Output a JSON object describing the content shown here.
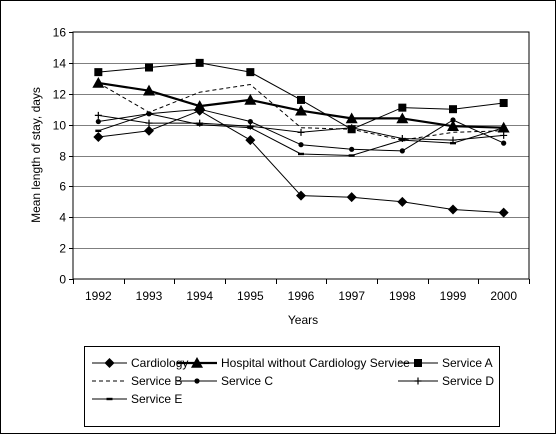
{
  "chart_data": {
    "type": "line",
    "title": "",
    "xlabel": "Years",
    "ylabel": "Mean length of stay, days",
    "ylim": [
      0,
      16
    ],
    "yticks": [
      0,
      2,
      4,
      6,
      8,
      10,
      12,
      14,
      16
    ],
    "categories": [
      "1992",
      "1993",
      "1994",
      "1995",
      "1996",
      "1997",
      "1998",
      "1999",
      "2000"
    ],
    "grid": "horizontal",
    "legend_position": "bottom",
    "series": [
      {
        "name": "Cardiology",
        "values": [
          9.2,
          9.6,
          10.9,
          9.0,
          5.4,
          5.3,
          5.0,
          4.5,
          4.3
        ],
        "marker": "diamond",
        "dash": "solid",
        "width": 1
      },
      {
        "name": "Hospital without Cardiology Service",
        "values": [
          12.7,
          12.2,
          11.2,
          11.6,
          10.9,
          10.4,
          10.4,
          9.9,
          9.8
        ],
        "marker": "triangle",
        "dash": "solid",
        "width": 2.2
      },
      {
        "name": "Service A",
        "values": [
          13.4,
          13.7,
          14.0,
          13.4,
          11.6,
          9.7,
          11.1,
          11.0,
          11.4
        ],
        "marker": "square",
        "dash": "solid",
        "width": 1
      },
      {
        "name": "Service B",
        "values": [
          12.7,
          10.8,
          12.1,
          12.6,
          9.8,
          9.7,
          9.0,
          9.5,
          9.6
        ],
        "marker": "none",
        "dash": "dashed",
        "width": 1
      },
      {
        "name": "Service C",
        "values": [
          10.2,
          10.7,
          11.0,
          10.2,
          8.7,
          8.4,
          8.3,
          10.3,
          8.8
        ],
        "marker": "dot",
        "dash": "solid",
        "width": 1
      },
      {
        "name": "Service D",
        "values": [
          10.6,
          10.1,
          10.1,
          9.9,
          9.5,
          9.8,
          9.1,
          9.0,
          9.3
        ],
        "marker": "plus",
        "dash": "solid",
        "width": 1
      },
      {
        "name": "Service E",
        "values": [
          9.6,
          10.7,
          10.0,
          9.8,
          8.1,
          8.0,
          9.0,
          8.8,
          9.8
        ],
        "marker": "dash",
        "dash": "solid",
        "width": 1
      }
    ]
  }
}
